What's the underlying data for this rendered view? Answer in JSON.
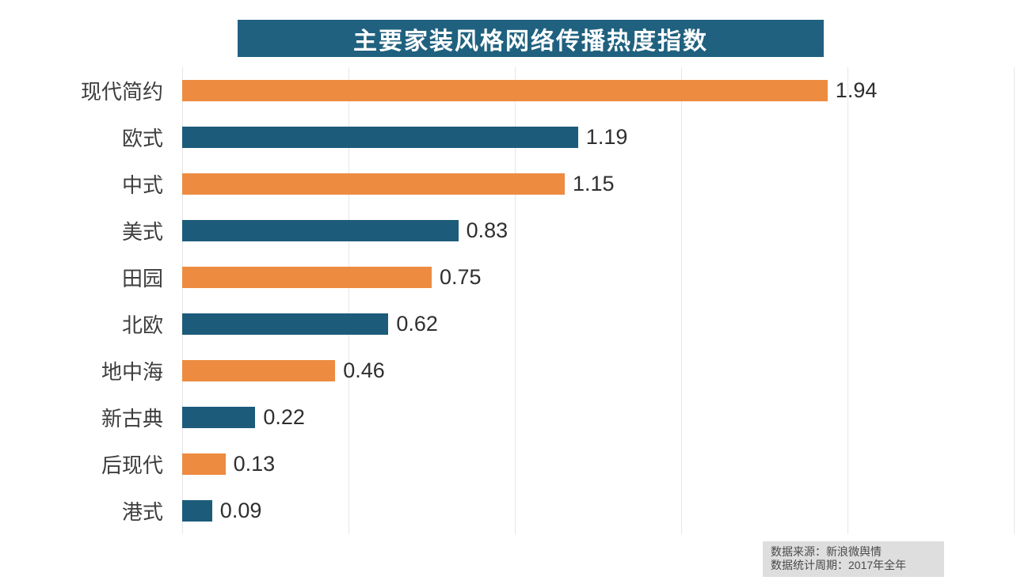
{
  "chart_data": {
    "type": "bar",
    "orientation": "horizontal",
    "title": "主要家装风格网络传播热度指数",
    "categories": [
      "现代简约",
      "欧式",
      "中式",
      "美式",
      "田园",
      "北欧",
      "地中海",
      "新古典",
      "后现代",
      "港式"
    ],
    "values": [
      1.94,
      1.19,
      1.15,
      0.83,
      0.75,
      0.62,
      0.46,
      0.22,
      0.13,
      0.09
    ],
    "value_labels": [
      "1.94",
      "1.19",
      "1.15",
      "0.83",
      "0.75",
      "0.62",
      "0.46",
      "0.22",
      "0.13",
      "0.09"
    ],
    "xlabel": "",
    "ylabel": "",
    "xlim": [
      0,
      2.5
    ],
    "gridline_step": 0.5,
    "grid": true,
    "legend": false,
    "bar_colors_alternating": [
      "#ED8B40",
      "#1D5B7B"
    ]
  },
  "colors": {
    "title_background": "#20617F",
    "title_text": "#FFFFFF",
    "orange_bar": "#ED8B40",
    "teal_bar": "#1D5B7B",
    "gridline": "#E7E7E7",
    "source_box_background": "#DEDEDE"
  },
  "source": {
    "line1": "数据来源：新浪微舆情",
    "line2": "数据统计周期：2017年全年"
  }
}
